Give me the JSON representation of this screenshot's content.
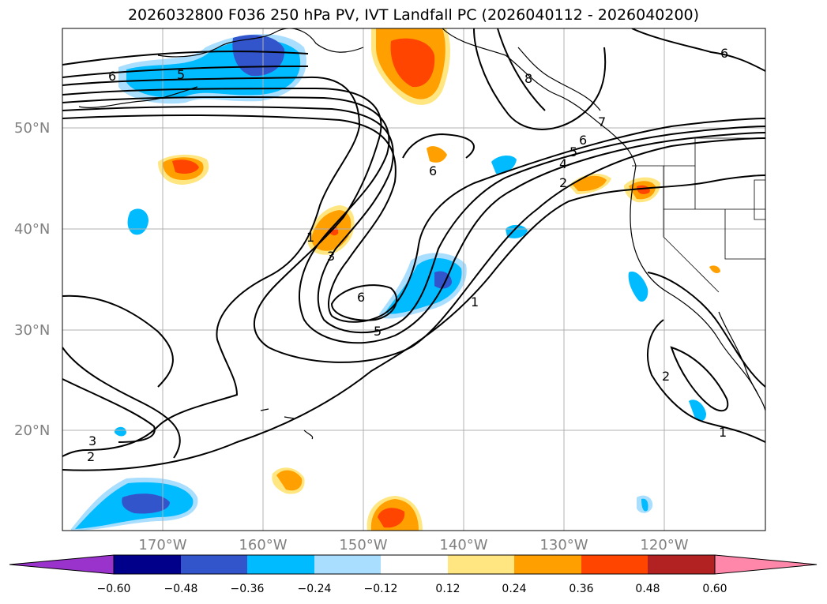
{
  "title": "2026032800 F036 250 hPa PV, IVT Landfall PC (2026040112 - 2026040200)",
  "lat_labels": [
    "50°N",
    "40°N",
    "30°N",
    "20°N"
  ],
  "lon_labels": [
    "170°W",
    "160°W",
    "150°W",
    "140°W",
    "130°W",
    "120°W"
  ],
  "contour_labels": [
    "6",
    "5",
    "1",
    "3",
    "6",
    "5",
    "6",
    "2",
    "4",
    "5",
    "6",
    "7",
    "1",
    "2",
    "1",
    "3",
    "2",
    "6",
    "8"
  ],
  "colorbar": {
    "ticks": [
      "−0.60",
      "−0.48",
      "−0.36",
      "−0.24",
      "−0.12",
      "0.12",
      "0.24",
      "0.36",
      "0.48",
      "0.60"
    ],
    "colors": [
      "#9933cc",
      "#00008b",
      "#3355cc",
      "#00bbff",
      "#aadeff",
      "#ffffff",
      "#ffe680",
      "#ffa000",
      "#ff4500",
      "#b22222",
      "#ff88aa"
    ]
  }
}
